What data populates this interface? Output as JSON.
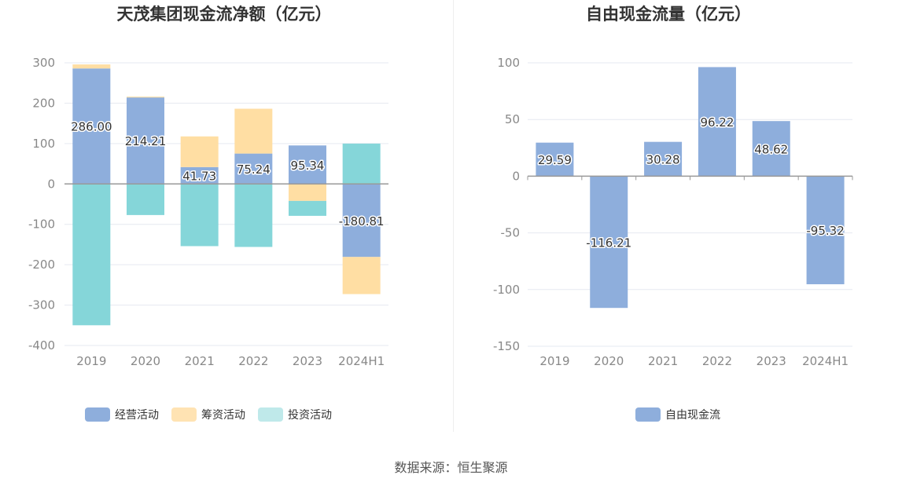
{
  "source": "数据来源：恒生聚源",
  "chart_data": [
    {
      "type": "bar",
      "stacked": true,
      "title": "天茂集团现金流净额（亿元）",
      "categories": [
        "2019",
        "2020",
        "2021",
        "2022",
        "2023",
        "2024H1"
      ],
      "ylim": [
        -400,
        300
      ],
      "yticks": [
        300,
        200,
        100,
        0,
        -100,
        -200,
        -300,
        -400
      ],
      "series": [
        {
          "name": "经营活动",
          "color": "#8eaedc",
          "values": [
            286.0,
            214.21,
            41.73,
            75.24,
            95.34,
            -180.81
          ],
          "labels": [
            "286.00",
            "214.21",
            "41.73",
            "75.24",
            "95.34",
            "-180.81"
          ]
        },
        {
          "name": "筹资活动",
          "color": "#ffdea3",
          "values": [
            10,
            2,
            76,
            111,
            -42,
            -92
          ]
        },
        {
          "name": "投资活动",
          "color": "#85d6d9",
          "values": [
            -350,
            -77,
            -154,
            -156,
            -37,
            100
          ]
        }
      ],
      "legend_position": "bottom"
    },
    {
      "type": "bar",
      "title": "自由现金流量（亿元）",
      "categories": [
        "2019",
        "2020",
        "2021",
        "2022",
        "2023",
        "2024H1"
      ],
      "ylim": [
        -150,
        100
      ],
      "yticks": [
        100,
        50,
        0,
        -50,
        -100,
        -150
      ],
      "series": [
        {
          "name": "自由现金流",
          "color": "#8eaedc",
          "values": [
            29.59,
            -116.21,
            30.28,
            96.22,
            48.62,
            -95.32
          ],
          "labels": [
            "29.59",
            "-116.21",
            "30.28",
            "96.22",
            "48.62",
            "-95.32"
          ]
        }
      ],
      "legend_position": "bottom"
    }
  ]
}
